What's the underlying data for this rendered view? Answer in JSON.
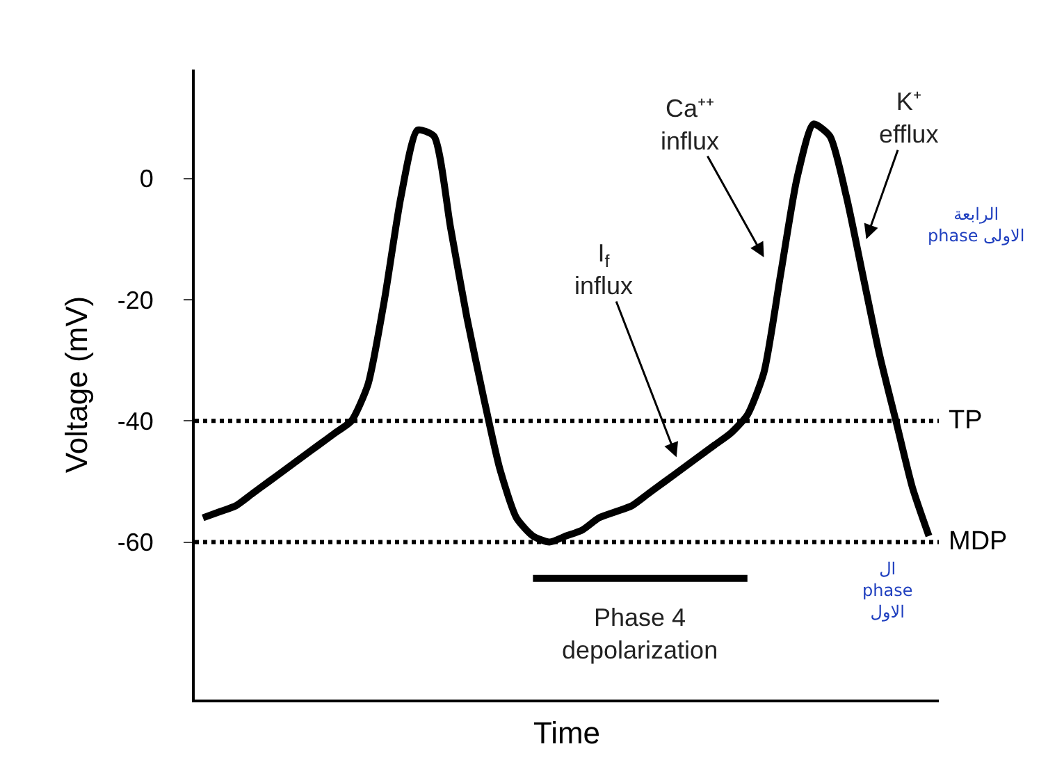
{
  "chart_data": {
    "type": "line",
    "xlabel": "Time",
    "ylabel": "Voltage (mV)",
    "categories": [
      null,
      null,
      null,
      null,
      null,
      null,
      null,
      null,
      null,
      null,
      null,
      null,
      null,
      null,
      null,
      null,
      null,
      null,
      null,
      null,
      null,
      null,
      null,
      null,
      null,
      null,
      null,
      null,
      null,
      null,
      null,
      null,
      null,
      null,
      null,
      null,
      null,
      null,
      null,
      null,
      null,
      null,
      null,
      null,
      null
    ],
    "series": [
      {
        "color": "#000000",
        "values": [
          -56,
          -55,
          -54,
          -52,
          -50,
          -48,
          -46,
          -44,
          -42,
          -40,
          -34,
          -20,
          -3,
          8,
          7,
          -8,
          -23,
          -36,
          -48,
          -56,
          -59,
          -60,
          -59,
          -58,
          -56,
          -55,
          -54,
          -52,
          -50,
          -48,
          -46,
          -44,
          -42,
          -39,
          -32,
          -16,
          0,
          9,
          7,
          -3,
          -16,
          -29,
          -40,
          -51,
          -59
        ]
      },
      {
        "color": "#000000",
        "values": [
          null,
          null,
          null,
          null,
          null,
          null,
          null,
          null,
          null,
          null,
          null,
          null,
          null,
          null,
          null,
          null,
          null,
          null,
          null,
          null,
          -66,
          -66,
          -66,
          -66,
          -66,
          -66,
          -66,
          -66,
          -66,
          -66,
          -66,
          -66,
          -66,
          -66,
          null,
          null,
          null,
          null,
          null,
          null,
          null,
          null,
          null,
          null,
          null
        ]
      }
    ],
    "ylim": [
      -86,
      18
    ],
    "yticks": [
      0,
      -20,
      -40,
      -60
    ],
    "ref_lines": [
      {
        "axis": "y",
        "value": -40,
        "label": "TP",
        "line_style": "dotted",
        "color": "#000000"
      },
      {
        "axis": "y",
        "value": -60,
        "label": "MDP",
        "line_style": "dotted",
        "color": "#000000"
      }
    ],
    "annotations": [
      "Ca⁺⁺\ninflux",
      "K⁺\nefflux",
      "I$_{f}$\ninflux",
      "Phase 4\ndepolarization",
      "الرابعة\nphase الاولى",
      "ال\nphase\nالاول"
    ],
    "marker": "none",
    "line_style": "solid"
  }
}
